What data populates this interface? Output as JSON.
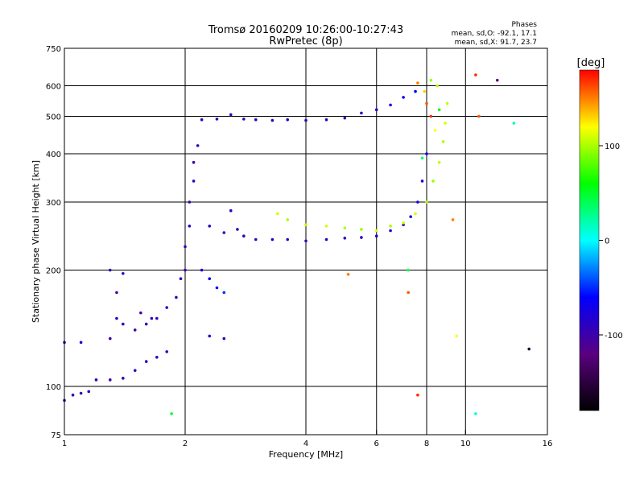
{
  "chart_data": {
    "type": "scatter",
    "title": "Tromsø 20160209 10:26:00-10:27:43",
    "subtitle": "RwPretec (8p)",
    "stats": {
      "heading": "Phases",
      "line_o": "mean, sd,O: -92.1, 17.1",
      "line_x": "mean, sd,X:  91.7, 23.7"
    },
    "xlabel": "Frequency [MHz]",
    "ylabel": "Stationary phase Virtual Height [km]",
    "x_scale": "log",
    "y_scale": "log",
    "xlim": [
      1,
      16
    ],
    "ylim": [
      75,
      750
    ],
    "x_ticks": [
      1,
      2,
      4,
      6,
      8,
      10,
      16
    ],
    "x_tick_labels": [
      "1",
      "2",
      "4",
      "6",
      "8",
      "10",
      "16"
    ],
    "x_gridlines": [
      2,
      4,
      6,
      8,
      10
    ],
    "y_ticks": [
      75,
      100,
      200,
      300,
      400,
      500,
      600,
      750
    ],
    "y_tick_labels": [
      "75",
      "100",
      "200",
      "300",
      "400",
      "500",
      "600",
      "750"
    ],
    "y_gridlines": [
      100,
      200,
      300,
      400,
      500,
      600
    ],
    "colorbar": {
      "label": "[deg]",
      "range": [
        -180,
        180
      ],
      "ticks": [
        100,
        0,
        -100
      ],
      "tick_labels": [
        "100",
        "0",
        "-100"
      ],
      "colors": [
        "#000000",
        "#5a0080",
        "#0000ff",
        "#00ffff",
        "#00ff00",
        "#ffff00",
        "#ff0000"
      ]
    },
    "series": [
      {
        "points": [
          [
            1.0,
            92,
            -95
          ],
          [
            1.05,
            95,
            -90
          ],
          [
            1.1,
            96,
            -100
          ],
          [
            1.15,
            97,
            -85
          ],
          [
            1.2,
            104,
            -90
          ],
          [
            1.3,
            104,
            -100
          ],
          [
            1.4,
            105,
            -90
          ],
          [
            1.5,
            110,
            -95
          ],
          [
            1.6,
            116,
            -88
          ],
          [
            1.7,
            119,
            -92
          ],
          [
            1.8,
            123,
            -80
          ]
        ]
      },
      {
        "points": [
          [
            1.0,
            130,
            -95
          ],
          [
            1.1,
            130,
            -90
          ],
          [
            1.3,
            133,
            -100
          ],
          [
            1.35,
            150,
            -90
          ],
          [
            1.4,
            145,
            -85
          ],
          [
            1.5,
            140,
            -100
          ],
          [
            1.6,
            145,
            -90
          ],
          [
            1.7,
            150,
            -95
          ],
          [
            1.8,
            160,
            -90
          ],
          [
            1.3,
            200,
            -95
          ],
          [
            1.35,
            175,
            -110
          ],
          [
            1.4,
            196,
            -90
          ],
          [
            1.55,
            155,
            -100
          ],
          [
            1.65,
            150,
            -88
          ]
        ]
      },
      {
        "points": [
          [
            1.9,
            170,
            -95
          ],
          [
            1.95,
            190,
            -90
          ],
          [
            2.0,
            200,
            -100
          ],
          [
            2.0,
            230,
            -92
          ],
          [
            2.05,
            260,
            -85
          ],
          [
            2.05,
            300,
            -95
          ],
          [
            2.1,
            340,
            -90
          ],
          [
            2.1,
            380,
            -100
          ],
          [
            2.15,
            420,
            -90
          ],
          [
            2.2,
            200,
            -80
          ],
          [
            2.3,
            190,
            -70
          ],
          [
            2.4,
            180,
            -60
          ],
          [
            2.5,
            175,
            -50
          ],
          [
            2.3,
            135,
            -95
          ],
          [
            2.5,
            133,
            -90
          ]
        ]
      },
      {
        "points": [
          [
            2.3,
            260,
            -90
          ],
          [
            2.5,
            250,
            -95
          ],
          [
            2.6,
            285,
            -85
          ],
          [
            2.7,
            255,
            -90
          ],
          [
            2.8,
            245,
            -92
          ],
          [
            3.0,
            240,
            -95
          ],
          [
            3.3,
            240,
            -90
          ],
          [
            3.6,
            240,
            -93
          ],
          [
            4.0,
            238,
            -95
          ],
          [
            4.5,
            240,
            -90
          ],
          [
            5.0,
            242,
            -92
          ],
          [
            5.5,
            243,
            -90
          ],
          [
            6.0,
            245,
            -88
          ],
          [
            6.5,
            253,
            -85
          ],
          [
            7.0,
            262,
            -82
          ],
          [
            7.3,
            275,
            -80
          ],
          [
            7.6,
            300,
            -80
          ],
          [
            7.8,
            340,
            -75
          ],
          [
            8.0,
            400,
            -70
          ]
        ]
      },
      {
        "points": [
          [
            2.2,
            490,
            -90
          ],
          [
            2.4,
            492,
            -95
          ],
          [
            2.6,
            505,
            -90
          ],
          [
            2.8,
            492,
            -92
          ],
          [
            3.0,
            490,
            -90
          ],
          [
            3.3,
            488,
            -95
          ],
          [
            3.6,
            490,
            -90
          ],
          [
            4.0,
            488,
            -92
          ],
          [
            4.5,
            490,
            -90
          ],
          [
            5.0,
            495,
            -88
          ],
          [
            5.5,
            510,
            -85
          ],
          [
            6.0,
            520,
            -80
          ],
          [
            6.5,
            535,
            -75
          ],
          [
            7.0,
            560,
            -70
          ],
          [
            7.5,
            580,
            -60
          ]
        ]
      },
      {
        "points": [
          [
            3.4,
            280,
            110
          ],
          [
            3.6,
            270,
            100
          ],
          [
            4.0,
            262,
            105
          ],
          [
            4.5,
            260,
            110
          ],
          [
            5.0,
            257,
            100
          ],
          [
            5.5,
            255,
            95
          ],
          [
            6.0,
            253,
            110
          ],
          [
            6.5,
            260,
            100
          ],
          [
            7.0,
            265,
            105
          ],
          [
            7.5,
            280,
            110
          ],
          [
            8.0,
            300,
            100
          ],
          [
            8.3,
            340,
            95
          ],
          [
            8.6,
            380,
            105
          ],
          [
            8.8,
            430,
            100
          ],
          [
            8.9,
            480,
            110
          ],
          [
            9.0,
            540,
            105
          ],
          [
            8.5,
            600,
            100
          ],
          [
            8.2,
            620,
            95
          ]
        ]
      },
      {
        "points": [
          [
            7.6,
            610,
            150
          ],
          [
            7.9,
            580,
            130
          ],
          [
            8.0,
            540,
            160
          ],
          [
            8.2,
            500,
            170
          ],
          [
            8.4,
            460,
            120
          ],
          [
            8.6,
            520,
            60
          ],
          [
            7.8,
            390,
            30
          ],
          [
            7.2,
            200,
            40
          ],
          [
            9.3,
            270,
            150
          ],
          [
            10.6,
            640,
            170
          ],
          [
            10.8,
            500,
            160
          ],
          [
            12.0,
            620,
            -120
          ],
          [
            13.2,
            480,
            20
          ],
          [
            14.4,
            125,
            -160
          ],
          [
            10.6,
            85,
            10
          ],
          [
            1.85,
            85,
            50
          ],
          [
            5.1,
            195,
            150
          ],
          [
            7.2,
            175,
            160
          ],
          [
            7.6,
            95,
            170
          ],
          [
            9.5,
            135,
            120
          ]
        ]
      }
    ]
  }
}
